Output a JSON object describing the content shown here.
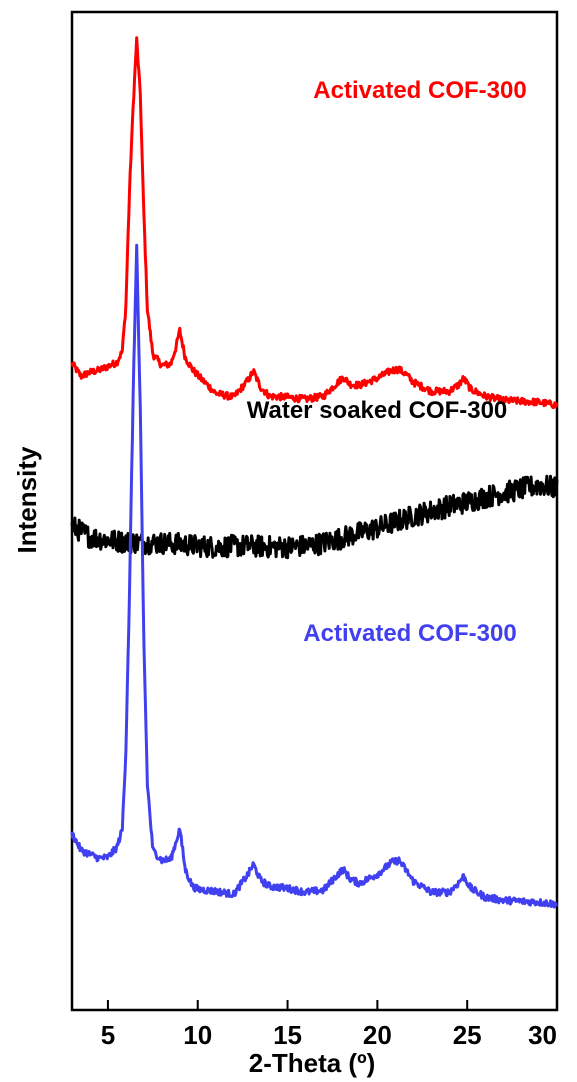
{
  "chart_data": {
    "type": "line",
    "xlabel": "2-Theta (º)",
    "ylabel": "Intensity",
    "xlim": [
      3,
      30
    ],
    "ylim": [
      0,
      100
    ],
    "x_ticks": [
      5,
      10,
      15,
      20,
      25,
      30
    ],
    "x_tick_labels": [
      "5",
      "10",
      "15",
      "20",
      "25",
      "30"
    ],
    "grid": false,
    "legend": "none",
    "series": [
      {
        "name": "Activated COF-300",
        "color": "#ff0000",
        "noise": 0.35,
        "x": [
          3.0,
          3.5,
          4.0,
          4.5,
          5.0,
          5.5,
          5.8,
          6.0,
          6.2,
          6.4,
          6.6,
          6.8,
          7.0,
          7.2,
          7.5,
          8.0,
          8.5,
          8.8,
          9.0,
          9.3,
          9.7,
          10.0,
          11.0,
          12.0,
          12.8,
          13.1,
          13.5,
          14.0,
          15.0,
          16.0,
          17.0,
          17.8,
          18.1,
          18.5,
          19.0,
          20.0,
          20.8,
          21.2,
          21.6,
          22.0,
          23.0,
          24.0,
          24.5,
          24.8,
          25.2,
          26.0,
          27.0,
          28.0,
          29.0,
          30.0
        ],
        "y": [
          64.8,
          63.5,
          63.9,
          64.1,
          64.5,
          64.9,
          66.0,
          70.6,
          82.0,
          90.4,
          97.2,
          91.8,
          79.7,
          70.2,
          65.7,
          64.6,
          64.7,
          66.5,
          68.1,
          65.4,
          64.2,
          63.6,
          61.8,
          61.4,
          63.1,
          64.0,
          62.4,
          61.5,
          61.4,
          61.2,
          61.5,
          62.9,
          63.4,
          62.7,
          62.6,
          63.3,
          64.1,
          64.2,
          63.7,
          62.9,
          62.0,
          62.0,
          62.6,
          63.3,
          62.2,
          61.5,
          61.1,
          61.0,
          60.9,
          60.6
        ]
      },
      {
        "name": "Water soaked COF-300",
        "color": "#000000",
        "noise": 1.1,
        "x": [
          3.0,
          4.0,
          5.0,
          6.0,
          7.0,
          8.0,
          9.0,
          10.0,
          11.0,
          12.0,
          13.0,
          14.0,
          15.0,
          16.0,
          17.0,
          18.0,
          19.0,
          20.0,
          21.0,
          22.0,
          23.0,
          24.0,
          25.0,
          26.0,
          27.0,
          28.0,
          29.0,
          30.0
        ],
        "y": [
          48.5,
          47.4,
          47.1,
          46.9,
          46.8,
          46.8,
          46.7,
          46.5,
          46.4,
          46.5,
          46.5,
          46.4,
          46.4,
          46.5,
          46.8,
          47.3,
          47.8,
          48.3,
          48.9,
          49.5,
          50.0,
          50.5,
          50.9,
          51.4,
          51.8,
          52.2,
          52.6,
          52.3
        ]
      },
      {
        "name": "Activated COF-300",
        "color": "#4040f0",
        "noise": 0.35,
        "x": [
          3.0,
          3.5,
          4.0,
          4.5,
          5.0,
          5.5,
          5.8,
          6.0,
          6.2,
          6.4,
          6.6,
          6.8,
          7.0,
          7.2,
          7.5,
          8.0,
          8.5,
          8.8,
          9.0,
          9.3,
          9.7,
          10.0,
          11.0,
          12.0,
          12.8,
          13.1,
          13.5,
          14.0,
          15.0,
          16.0,
          17.0,
          17.8,
          18.1,
          18.5,
          19.0,
          20.0,
          20.8,
          21.2,
          21.6,
          22.0,
          23.0,
          24.0,
          24.5,
          24.8,
          25.2,
          26.0,
          27.0,
          28.0,
          29.0,
          30.0
        ],
        "y": [
          17.7,
          16.0,
          15.6,
          15.2,
          15.3,
          16.3,
          18.1,
          26.1,
          41.7,
          61.4,
          76.5,
          60.1,
          36.8,
          22.6,
          16.0,
          15.0,
          15.1,
          16.9,
          18.2,
          14.1,
          12.4,
          12.1,
          11.9,
          11.6,
          13.6,
          14.6,
          13.0,
          12.4,
          12.2,
          11.8,
          12.0,
          13.6,
          14.1,
          13.1,
          12.7,
          13.6,
          14.8,
          15.0,
          14.0,
          12.9,
          11.8,
          11.8,
          12.7,
          13.4,
          12.2,
          11.3,
          11.0,
          10.9,
          10.8,
          10.6
        ]
      }
    ],
    "annotations": [
      {
        "text": "Activated COF-300",
        "color": "#ff0000"
      },
      {
        "text": "Water soaked COF-300",
        "color": "#000000"
      },
      {
        "text": "Activated COF-300",
        "color": "#4040f0"
      }
    ]
  }
}
